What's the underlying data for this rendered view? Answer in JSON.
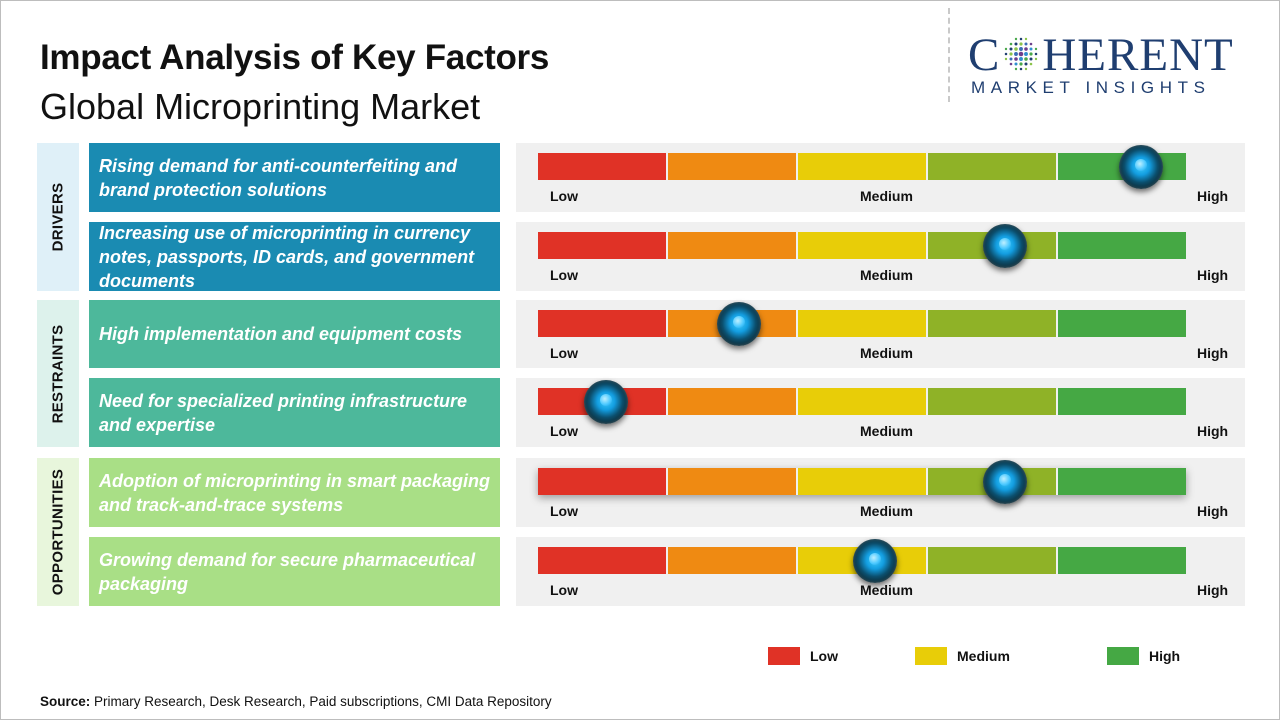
{
  "header": {
    "title": "Impact Analysis of Key Factors",
    "subtitle": "Global Microprinting Market"
  },
  "logo": {
    "brand_pre": "C",
    "brand_post": "HERENT",
    "tagline": "MARKET INSIGHTS"
  },
  "scale_labels": {
    "low": "Low",
    "medium": "Medium",
    "high": "High"
  },
  "colors": {
    "segments": [
      "#e03226",
      "#ef8a12",
      "#e8cd08",
      "#8fb227",
      "#45a844"
    ],
    "drivers": "#1a8bb2",
    "restraints": "#4db89b",
    "opportunities": "#a9df86",
    "drivers_tab": "#dff0f8",
    "restraints_tab": "#ddf2ec",
    "opportunities_tab": "#e8f6dc"
  },
  "categories": [
    {
      "key": "drivers",
      "label": "DRIVERS"
    },
    {
      "key": "restraints",
      "label": "RESTRAINTS"
    },
    {
      "key": "opportunities",
      "label": "OPPORTUNITIES"
    }
  ],
  "chart_data": {
    "type": "table",
    "scale": {
      "min": 0,
      "max": 1,
      "labels": [
        "Low",
        "Medium",
        "High"
      ]
    },
    "factors": [
      {
        "category": "DRIVERS",
        "text": "Rising demand for anti-counterfeiting and brand protection solutions",
        "impact": 0.93
      },
      {
        "category": "DRIVERS",
        "text": "Increasing use of microprinting in currency notes, passports, ID cards, and government documents",
        "impact": 0.72
      },
      {
        "category": "RESTRAINTS",
        "text": "High implementation and equipment costs",
        "impact": 0.31
      },
      {
        "category": "RESTRAINTS",
        "text": "Need for specialized printing infrastructure and expertise",
        "impact": 0.105
      },
      {
        "category": "OPPORTUNITIES",
        "text": "Adoption of microprinting in smart packaging and track-and-trace systems",
        "impact": 0.72
      },
      {
        "category": "OPPORTUNITIES",
        "text": "Growing demand for secure pharmaceutical packaging",
        "impact": 0.52
      }
    ]
  },
  "legend": [
    {
      "label": "Low",
      "color": "#e03226"
    },
    {
      "label": "Medium",
      "color": "#e8cd08"
    },
    {
      "label": "High",
      "color": "#45a844"
    }
  ],
  "source": {
    "label": "Source:",
    "text": " Primary Research, Desk Research, Paid subscriptions, CMI Data Repository"
  }
}
